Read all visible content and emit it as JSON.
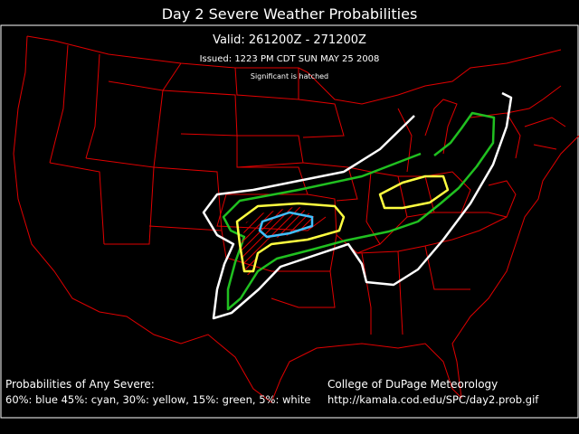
{
  "header": {
    "title": "Day 2 Severe Weather Probabilities",
    "valid": "Valid: 261200Z - 271200Z",
    "issued": "Issued: 1223 PM CDT SUN MAY 25 2008",
    "note": "Significant is hatched"
  },
  "footer": {
    "legend_title": "Probabilities of Any Severe:",
    "legend_text": "60%: blue 45%: cyan, 30%: yellow, 15%: green, 5%: white",
    "credit": "College of DuPage Meteorology",
    "url": "http://kamala.cod.edu/SPC/day2.prob.gif"
  }
}
